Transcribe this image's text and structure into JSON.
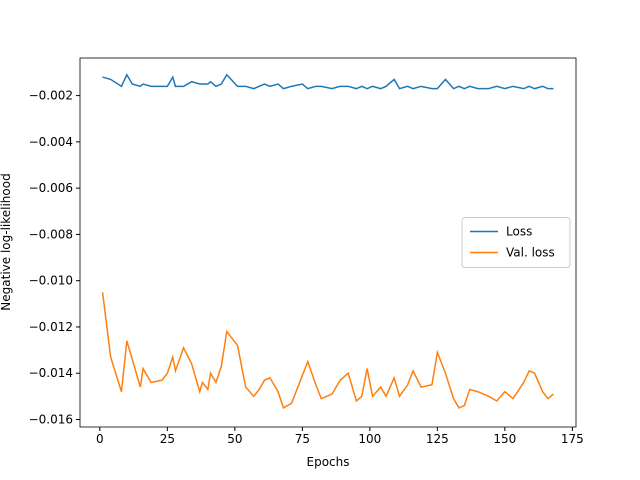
{
  "chart_data": {
    "type": "line",
    "xlabel": "Epochs",
    "ylabel": "Negative log-likelihood",
    "x": [
      1,
      4,
      8,
      10,
      12,
      15,
      16,
      19,
      23,
      25,
      27,
      28,
      31,
      34,
      37,
      38,
      40,
      41,
      43,
      45,
      47,
      51,
      54,
      57,
      59,
      61,
      63,
      66,
      68,
      71,
      75,
      77,
      80,
      82,
      86,
      89,
      92,
      95,
      97,
      99,
      101,
      104,
      106,
      109,
      111,
      114,
      116,
      119,
      123,
      125,
      128,
      131,
      133,
      135,
      137,
      140,
      144,
      147,
      150,
      153,
      157,
      159,
      161,
      164,
      166,
      168
    ],
    "series": [
      {
        "name": "Loss",
        "color": "#1f77b4",
        "values": [
          -0.0012,
          -0.0013,
          -0.0016,
          -0.0011,
          -0.0015,
          -0.0016,
          -0.0015,
          -0.0016,
          -0.0016,
          -0.0016,
          -0.0012,
          -0.0016,
          -0.0016,
          -0.0014,
          -0.0015,
          -0.0015,
          -0.0015,
          -0.0014,
          -0.0016,
          -0.0015,
          -0.0011,
          -0.0016,
          -0.0016,
          -0.0017,
          -0.0016,
          -0.0015,
          -0.0016,
          -0.0015,
          -0.0017,
          -0.0016,
          -0.0015,
          -0.0017,
          -0.0016,
          -0.0016,
          -0.0017,
          -0.0016,
          -0.0016,
          -0.0017,
          -0.0016,
          -0.0017,
          -0.0016,
          -0.0017,
          -0.0016,
          -0.0013,
          -0.0017,
          -0.0016,
          -0.0017,
          -0.0016,
          -0.0017,
          -0.0017,
          -0.0013,
          -0.0017,
          -0.0016,
          -0.0017,
          -0.0016,
          -0.0017,
          -0.0017,
          -0.0016,
          -0.0017,
          -0.0016,
          -0.0017,
          -0.0016,
          -0.0017,
          -0.0016,
          -0.0017,
          -0.0017
        ]
      },
      {
        "name": "Val. loss",
        "color": "#ff7f0e",
        "values": [
          -0.0105,
          -0.0133,
          -0.0148,
          -0.0126,
          -0.0134,
          -0.0146,
          -0.0138,
          -0.0144,
          -0.0143,
          -0.014,
          -0.0133,
          -0.0139,
          -0.0129,
          -0.0136,
          -0.0148,
          -0.0144,
          -0.0147,
          -0.014,
          -0.0144,
          -0.0137,
          -0.0122,
          -0.0128,
          -0.0146,
          -0.015,
          -0.0147,
          -0.0143,
          -0.0142,
          -0.0148,
          -0.0155,
          -0.0153,
          -0.0141,
          -0.0135,
          -0.0145,
          -0.0151,
          -0.0149,
          -0.0143,
          -0.014,
          -0.0152,
          -0.015,
          -0.0138,
          -0.015,
          -0.0146,
          -0.015,
          -0.0142,
          -0.015,
          -0.0145,
          -0.0139,
          -0.0146,
          -0.0145,
          -0.0131,
          -0.014,
          -0.0151,
          -0.0155,
          -0.0154,
          -0.0147,
          -0.0148,
          -0.015,
          -0.0152,
          -0.0148,
          -0.0151,
          -0.0144,
          -0.0139,
          -0.014,
          -0.0148,
          -0.0151,
          -0.0149
        ]
      }
    ],
    "xlim": [
      -7.35,
      176.35
    ],
    "xticks": [
      0,
      25,
      50,
      75,
      100,
      125,
      150,
      175
    ],
    "ylim": [
      -0.016325,
      -0.000375
    ],
    "yticks": [
      {
        "value": -0.016,
        "label": "−0.016"
      },
      {
        "value": -0.014,
        "label": "−0.014"
      },
      {
        "value": -0.012,
        "label": "−0.012"
      },
      {
        "value": -0.01,
        "label": "−0.010"
      },
      {
        "value": -0.008,
        "label": "−0.008"
      },
      {
        "value": -0.006,
        "label": "−0.006"
      },
      {
        "value": -0.004,
        "label": "−0.004"
      },
      {
        "value": -0.002,
        "label": "−0.002"
      }
    ],
    "grid": false,
    "legend": "center right"
  }
}
